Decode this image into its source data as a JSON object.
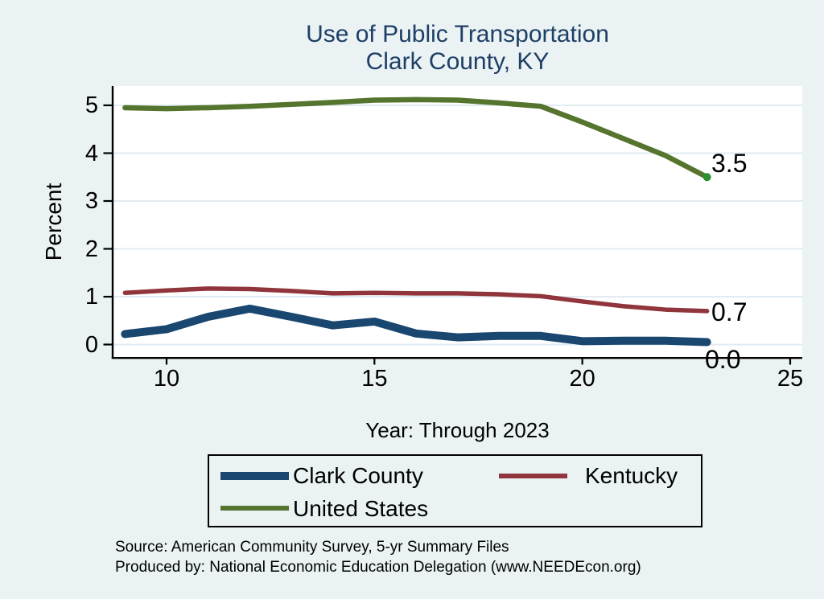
{
  "title": {
    "line1": "Use of Public Transportation",
    "line2": "Clark County, KY"
  },
  "chart_data": {
    "type": "line",
    "x": [
      9,
      10,
      11,
      12,
      13,
      14,
      15,
      16,
      17,
      18,
      19,
      20,
      21,
      22,
      23
    ],
    "series": [
      {
        "name": "Clark County",
        "color": "#1a476f",
        "line_width": 10,
        "values": [
          0.22,
          0.32,
          0.58,
          0.75,
          0.58,
          0.4,
          0.48,
          0.23,
          0.15,
          0.18,
          0.18,
          0.07,
          0.08,
          0.08,
          0.05
        ],
        "end_label": "0.0"
      },
      {
        "name": "Kentucky",
        "color": "#90353b",
        "line_width": 5.5,
        "values": [
          1.08,
          1.13,
          1.17,
          1.16,
          1.12,
          1.07,
          1.08,
          1.07,
          1.07,
          1.05,
          1.01,
          0.9,
          0.8,
          0.73,
          0.7
        ],
        "end_label": "0.7"
      },
      {
        "name": "United States",
        "color": "#55752f",
        "line_width": 6.5,
        "values": [
          4.95,
          4.93,
          4.95,
          4.98,
          5.02,
          5.06,
          5.11,
          5.12,
          5.11,
          5.05,
          4.98,
          4.65,
          4.3,
          3.95,
          3.5
        ],
        "end_label": "3.5",
        "end_marker": true,
        "end_marker_color": "#2d8e2d"
      }
    ],
    "xlabel": "Year: Through 2023",
    "ylabel": "Percent",
    "xticks": [
      "10",
      "15",
      "20",
      "25"
    ],
    "yticks": [
      "0",
      "1",
      "2",
      "3",
      "4",
      "5"
    ],
    "xlim": [
      8.7,
      25.3
    ],
    "ylim": [
      -0.27,
      5.4
    ],
    "grid": "horizontal",
    "legend_position": "bottom"
  },
  "notes": {
    "source_line": "Source: American Community Survey, 5-yr Summary Files",
    "produced_line": "Produced by: National Economic Education Delegation (www.NEEDEcon.org)"
  },
  "colors": {
    "background": "#eaf2f3",
    "plot_background": "#ffffff",
    "gridline": "#e2ebf1",
    "axis": "#000000",
    "title_text": "#1e3f66",
    "label_text": "#000000"
  }
}
